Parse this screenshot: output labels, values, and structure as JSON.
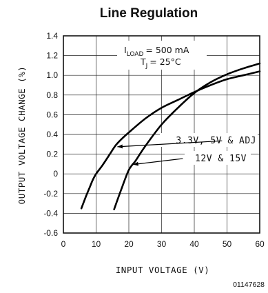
{
  "chart_data": {
    "type": "line",
    "title": "Line Regulation",
    "xlabel": "INPUT VOLTAGE (V)",
    "ylabel": "OUTPUT VOLTAGE CHANGE (%)",
    "xlim": [
      0,
      60
    ],
    "ylim": [
      -0.6,
      1.4
    ],
    "x_ticks": [
      "0",
      "10",
      "20",
      "30",
      "40",
      "50",
      "60"
    ],
    "y_ticks": [
      "1.4",
      "1.2",
      "1.0",
      "0.8",
      "0.6",
      "0.4",
      "0.2",
      "0",
      "-0.2",
      "-0.4",
      "-0.6"
    ],
    "grid": true,
    "conditions": {
      "iload_main": "I",
      "iload_sub": "LOAD",
      "iload_value": "= 500 mA",
      "tj_main": "T",
      "tj_sub": "J",
      "tj_value": "= 25°C"
    },
    "series": [
      {
        "name": "3.3V, 5V & ADJ",
        "points": [
          [
            5.5,
            -0.35
          ],
          [
            7,
            -0.22
          ],
          [
            8,
            -0.14
          ],
          [
            9,
            -0.06
          ],
          [
            10,
            0.0
          ],
          [
            12,
            0.09
          ],
          [
            14,
            0.19
          ],
          [
            16,
            0.29
          ],
          [
            18,
            0.36
          ],
          [
            20,
            0.42
          ],
          [
            25,
            0.56
          ],
          [
            30,
            0.67
          ],
          [
            35,
            0.75
          ],
          [
            40,
            0.83
          ],
          [
            45,
            0.9
          ],
          [
            50,
            0.96
          ],
          [
            55,
            1.0
          ],
          [
            60,
            1.04
          ]
        ]
      },
      {
        "name": "12V & 15V",
        "points": [
          [
            15.5,
            -0.36
          ],
          [
            17,
            -0.22
          ],
          [
            18,
            -0.13
          ],
          [
            19,
            -0.04
          ],
          [
            20,
            0.04
          ],
          [
            21,
            0.09
          ],
          [
            22,
            0.13
          ],
          [
            25,
            0.28
          ],
          [
            30,
            0.5
          ],
          [
            35,
            0.67
          ],
          [
            40,
            0.82
          ],
          [
            45,
            0.93
          ],
          [
            50,
            1.01
          ],
          [
            55,
            1.07
          ],
          [
            60,
            1.12
          ]
        ]
      }
    ]
  },
  "figure_id": "01147628"
}
